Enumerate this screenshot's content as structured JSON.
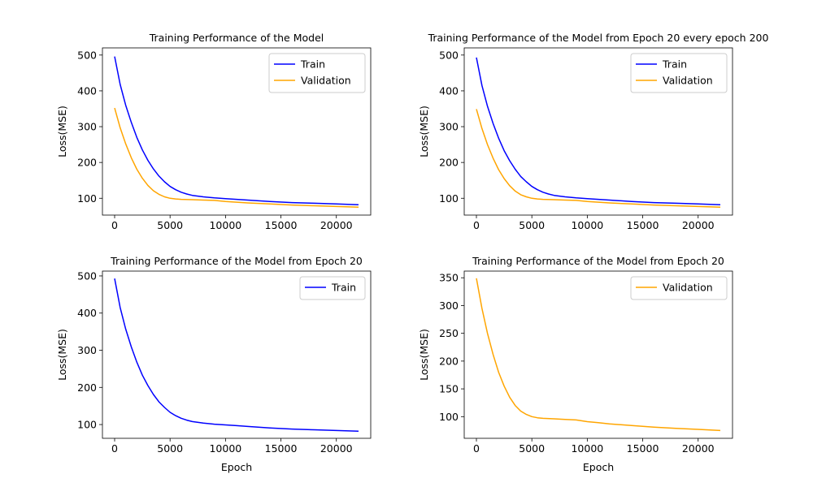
{
  "figure": {
    "background": "#ffffff",
    "colors": {
      "train": "#0000ff",
      "validation": "#ffa500"
    }
  },
  "chart_data": [
    {
      "type": "line",
      "title": "Training Performance of the Model",
      "xlabel": "",
      "ylabel": "Loss(MSE)",
      "xlim": [
        -1100,
        23100
      ],
      "ylim": [
        53,
        520
      ],
      "xticks": [
        0,
        5000,
        10000,
        15000,
        20000
      ],
      "yticks": [
        100,
        200,
        300,
        400,
        500
      ],
      "grid": false,
      "legend": "top-right",
      "series": [
        {
          "name": "Train",
          "color": "#0000ff",
          "x": [
            0,
            500,
            1000,
            1500,
            2000,
            2500,
            3000,
            3500,
            4000,
            4500,
            5000,
            5500,
            6000,
            6500,
            7000,
            8000,
            9000,
            10000,
            11000,
            12000,
            14000,
            16000,
            18000,
            20000,
            22000
          ],
          "y": [
            496,
            418,
            360,
            312,
            270,
            235,
            206,
            182,
            162,
            146,
            133,
            124,
            117,
            112,
            108,
            104,
            101,
            99,
            97,
            95,
            91,
            88,
            86,
            84,
            82
          ]
        },
        {
          "name": "Validation",
          "color": "#ffa500",
          "x": [
            0,
            500,
            1000,
            1500,
            2000,
            2500,
            3000,
            3500,
            4000,
            4500,
            5000,
            5500,
            6000,
            7000,
            8000,
            9000,
            10000,
            11000,
            12000,
            14000,
            16000,
            18000,
            20000,
            22000
          ],
          "y": [
            352,
            297,
            252,
            213,
            181,
            156,
            136,
            121,
            111,
            104,
            100,
            98,
            97,
            96,
            95,
            94,
            91,
            89,
            87,
            84,
            81,
            79,
            77,
            75
          ]
        }
      ]
    },
    {
      "type": "line",
      "title": "Training Performance of the Model from Epoch 20 every epoch 200",
      "xlabel": "",
      "ylabel": "Loss(MSE)",
      "xlim": [
        -1100,
        23100
      ],
      "ylim": [
        53,
        520
      ],
      "xticks": [
        0,
        5000,
        10000,
        15000,
        20000
      ],
      "yticks": [
        100,
        200,
        300,
        400,
        500
      ],
      "grid": false,
      "legend": "top-right",
      "series": [
        {
          "name": "Train",
          "color": "#0000ff",
          "x": [
            0,
            500,
            1000,
            1500,
            2000,
            2500,
            3000,
            3500,
            4000,
            4500,
            5000,
            5500,
            6000,
            6500,
            7000,
            8000,
            9000,
            10000,
            11000,
            12000,
            14000,
            16000,
            18000,
            20000,
            22000
          ],
          "y": [
            493,
            415,
            357,
            309,
            268,
            233,
            205,
            181,
            161,
            146,
            133,
            124,
            117,
            112,
            108,
            104,
            101,
            99,
            97,
            95,
            91,
            88,
            86,
            84,
            82
          ]
        },
        {
          "name": "Validation",
          "color": "#ffa500",
          "x": [
            0,
            500,
            1000,
            1500,
            2000,
            2500,
            3000,
            3500,
            4000,
            4500,
            5000,
            5500,
            6000,
            7000,
            8000,
            9000,
            10000,
            11000,
            12000,
            14000,
            16000,
            18000,
            20000,
            22000
          ],
          "y": [
            349,
            295,
            250,
            212,
            180,
            155,
            135,
            120,
            110,
            104,
            100,
            98,
            97,
            96,
            95,
            94,
            91,
            89,
            87,
            84,
            81,
            79,
            77,
            75
          ]
        }
      ]
    },
    {
      "type": "line",
      "title": "Training Performance of the Model from Epoch 20",
      "xlabel": "Epoch",
      "ylabel": "Loss(MSE)",
      "xlim": [
        -1100,
        23100
      ],
      "ylim": [
        63,
        513
      ],
      "xticks": [
        0,
        5000,
        10000,
        15000,
        20000
      ],
      "yticks": [
        100,
        200,
        300,
        400,
        500
      ],
      "grid": false,
      "legend": "top-right",
      "series": [
        {
          "name": "Train",
          "color": "#0000ff",
          "x": [
            0,
            500,
            1000,
            1500,
            2000,
            2500,
            3000,
            3500,
            4000,
            4500,
            5000,
            5500,
            6000,
            6500,
            7000,
            8000,
            9000,
            10000,
            11000,
            12000,
            14000,
            16000,
            18000,
            20000,
            22000
          ],
          "y": [
            493,
            415,
            357,
            309,
            268,
            233,
            205,
            181,
            161,
            146,
            133,
            124,
            117,
            112,
            108,
            104,
            101,
            99,
            97,
            95,
            91,
            88,
            86,
            84,
            82
          ]
        }
      ]
    },
    {
      "type": "line",
      "title": "Training Performance of the Model from Epoch 20",
      "xlabel": "Epoch",
      "ylabel": "Loss(MSE)",
      "xlim": [
        -1100,
        23100
      ],
      "ylim": [
        61,
        362
      ],
      "xticks": [
        0,
        5000,
        10000,
        15000,
        20000
      ],
      "yticks": [
        100,
        150,
        200,
        250,
        300,
        350
      ],
      "grid": false,
      "legend": "top-right",
      "series": [
        {
          "name": "Validation",
          "color": "#ffa500",
          "x": [
            0,
            500,
            1000,
            1500,
            2000,
            2500,
            3000,
            3500,
            4000,
            4500,
            5000,
            5500,
            6000,
            7000,
            8000,
            9000,
            10000,
            11000,
            12000,
            14000,
            16000,
            18000,
            20000,
            22000
          ],
          "y": [
            349,
            295,
            250,
            212,
            180,
            155,
            135,
            120,
            110,
            104,
            100,
            98,
            97,
            96,
            95,
            94,
            91,
            89,
            87,
            84,
            81,
            79,
            77,
            75
          ]
        }
      ]
    }
  ]
}
